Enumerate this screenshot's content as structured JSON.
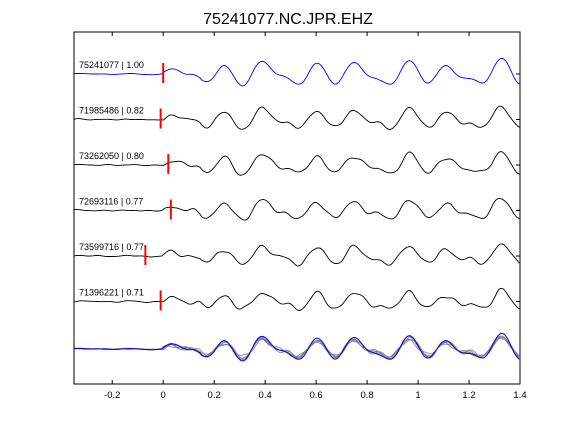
{
  "chart_data": {
    "type": "line",
    "title": "75241077.NC.JPR.EHZ",
    "xlabel": "",
    "ylabel": "",
    "xlim": [
      -0.35,
      1.4
    ],
    "x_ticks": [
      -0.2,
      0,
      0.2,
      0.4,
      0.6,
      0.8,
      1,
      1.2,
      1.4
    ],
    "x_tick_labels": [
      "-0.2",
      "0",
      "0.2",
      "0.4",
      "0.6",
      "0.8",
      "1",
      "1.2",
      "1.4"
    ],
    "grid": false,
    "template_color": "#0000ff",
    "trace_color": "#000000",
    "overlay_color": "#808080",
    "pick_color": "#ff0000",
    "traces": [
      {
        "label": "75241077 | 1.00",
        "event_id": "75241077",
        "cc": 1.0,
        "pick_time": 0.0,
        "seed": 11
      },
      {
        "label": "71985486 | 0.82",
        "event_id": "71985486",
        "cc": 0.82,
        "pick_time": -0.01,
        "seed": 23
      },
      {
        "label": "73262050 | 0.80",
        "event_id": "73262050",
        "cc": 0.8,
        "pick_time": 0.02,
        "seed": 37
      },
      {
        "label": "72693116 | 0.77",
        "event_id": "72693116",
        "cc": 0.77,
        "pick_time": 0.03,
        "seed": 41
      },
      {
        "label": "73599716 | 0.77",
        "event_id": "73599716",
        "cc": 0.77,
        "pick_time": -0.07,
        "seed": 53
      },
      {
        "label": "71396221 | 0.71",
        "event_id": "71396221",
        "cc": 0.71,
        "pick_time": -0.01,
        "seed": 67
      }
    ],
    "stack_label": ""
  }
}
